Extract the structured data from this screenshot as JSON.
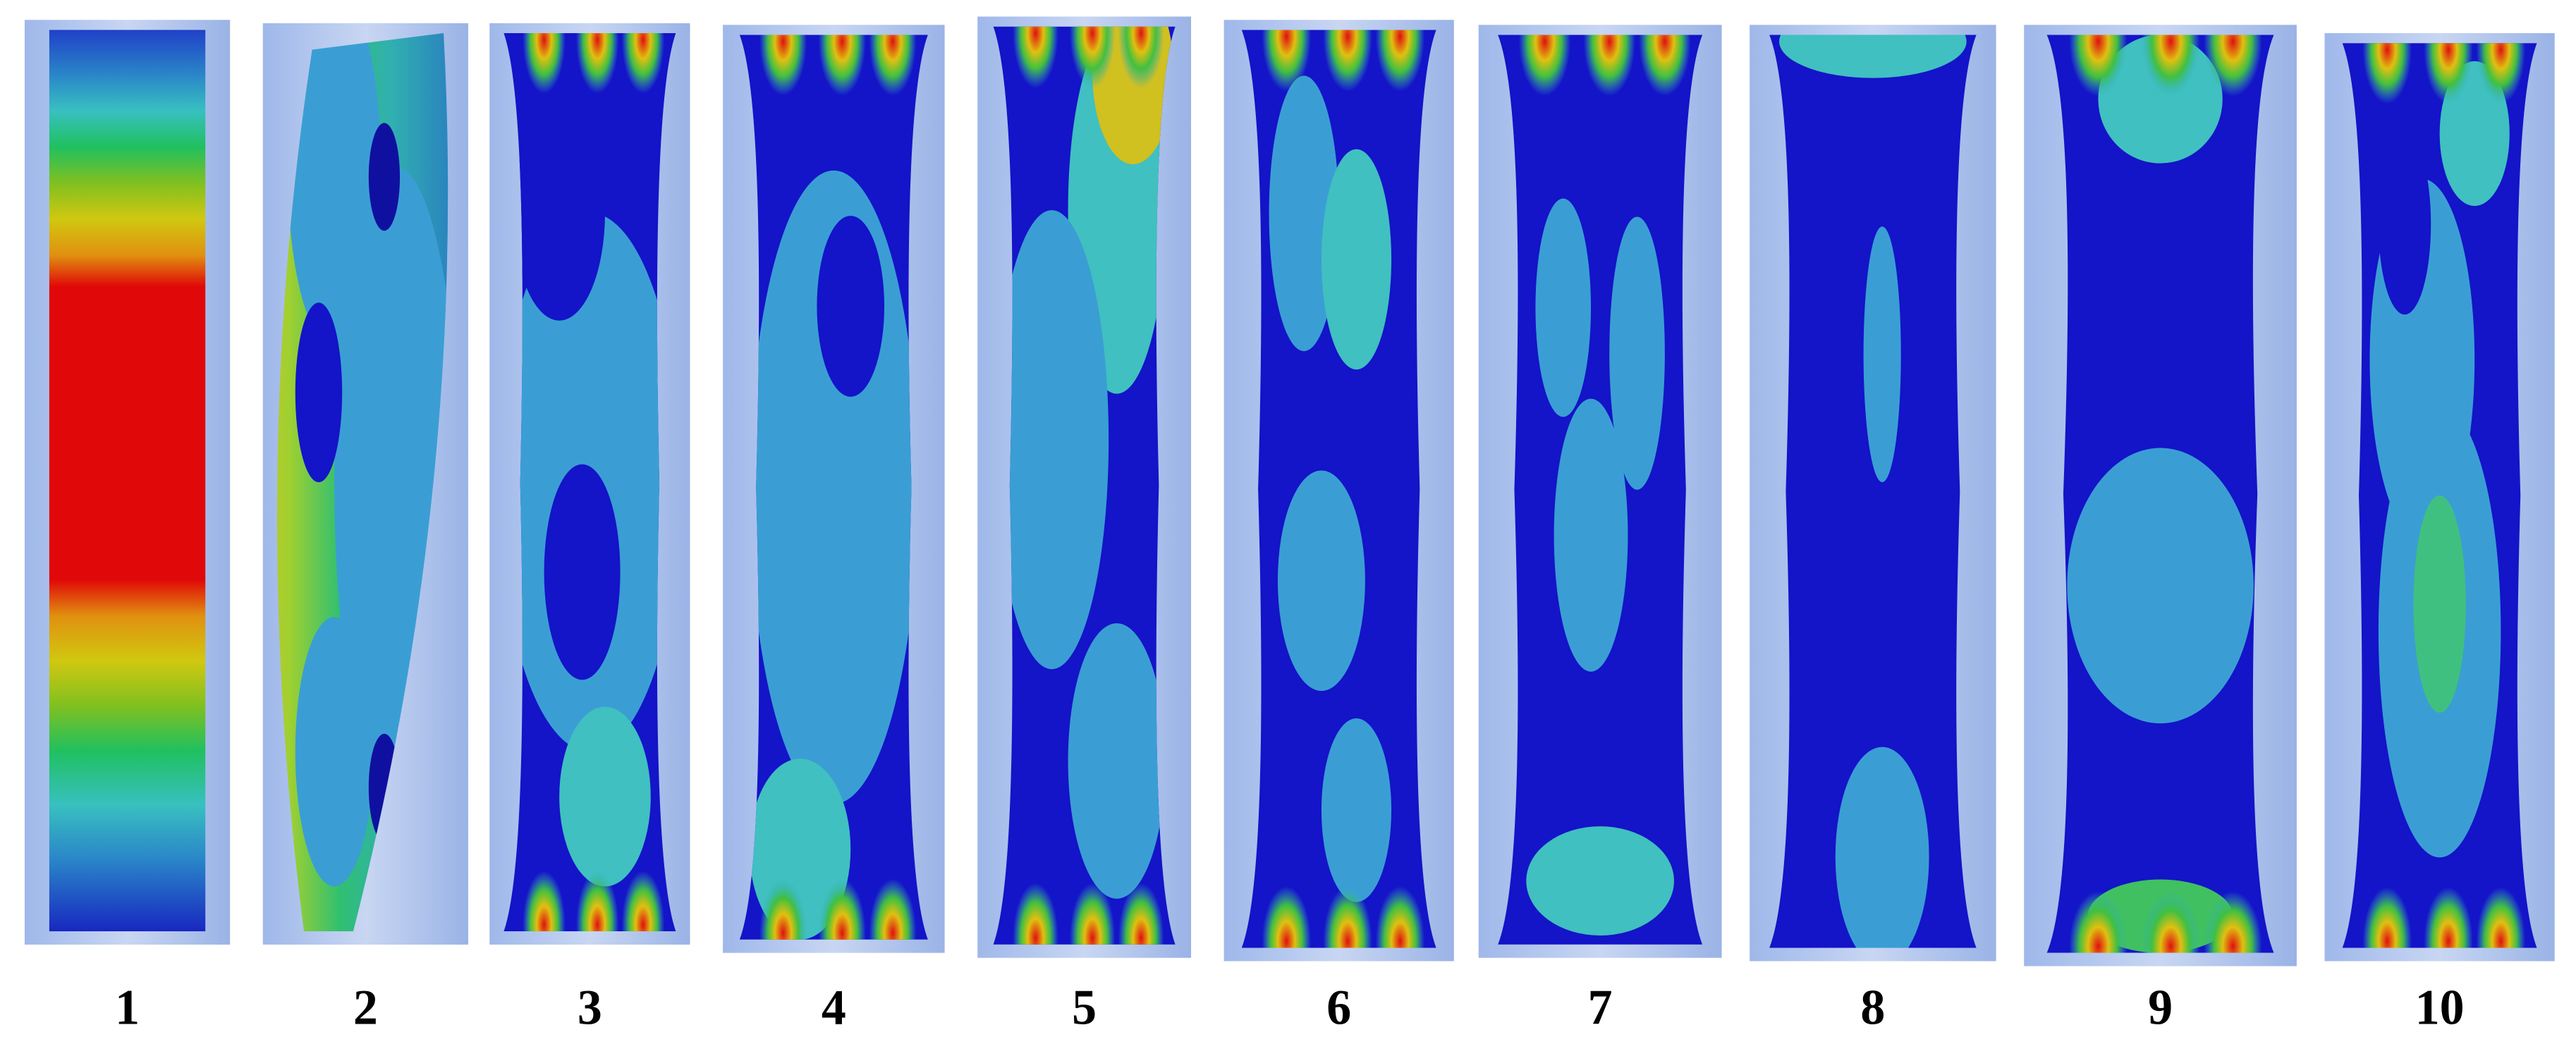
{
  "figure": {
    "labels": [
      "1",
      "2",
      "3",
      "4",
      "5",
      "6",
      "7",
      "8",
      "9",
      "10"
    ]
  }
}
